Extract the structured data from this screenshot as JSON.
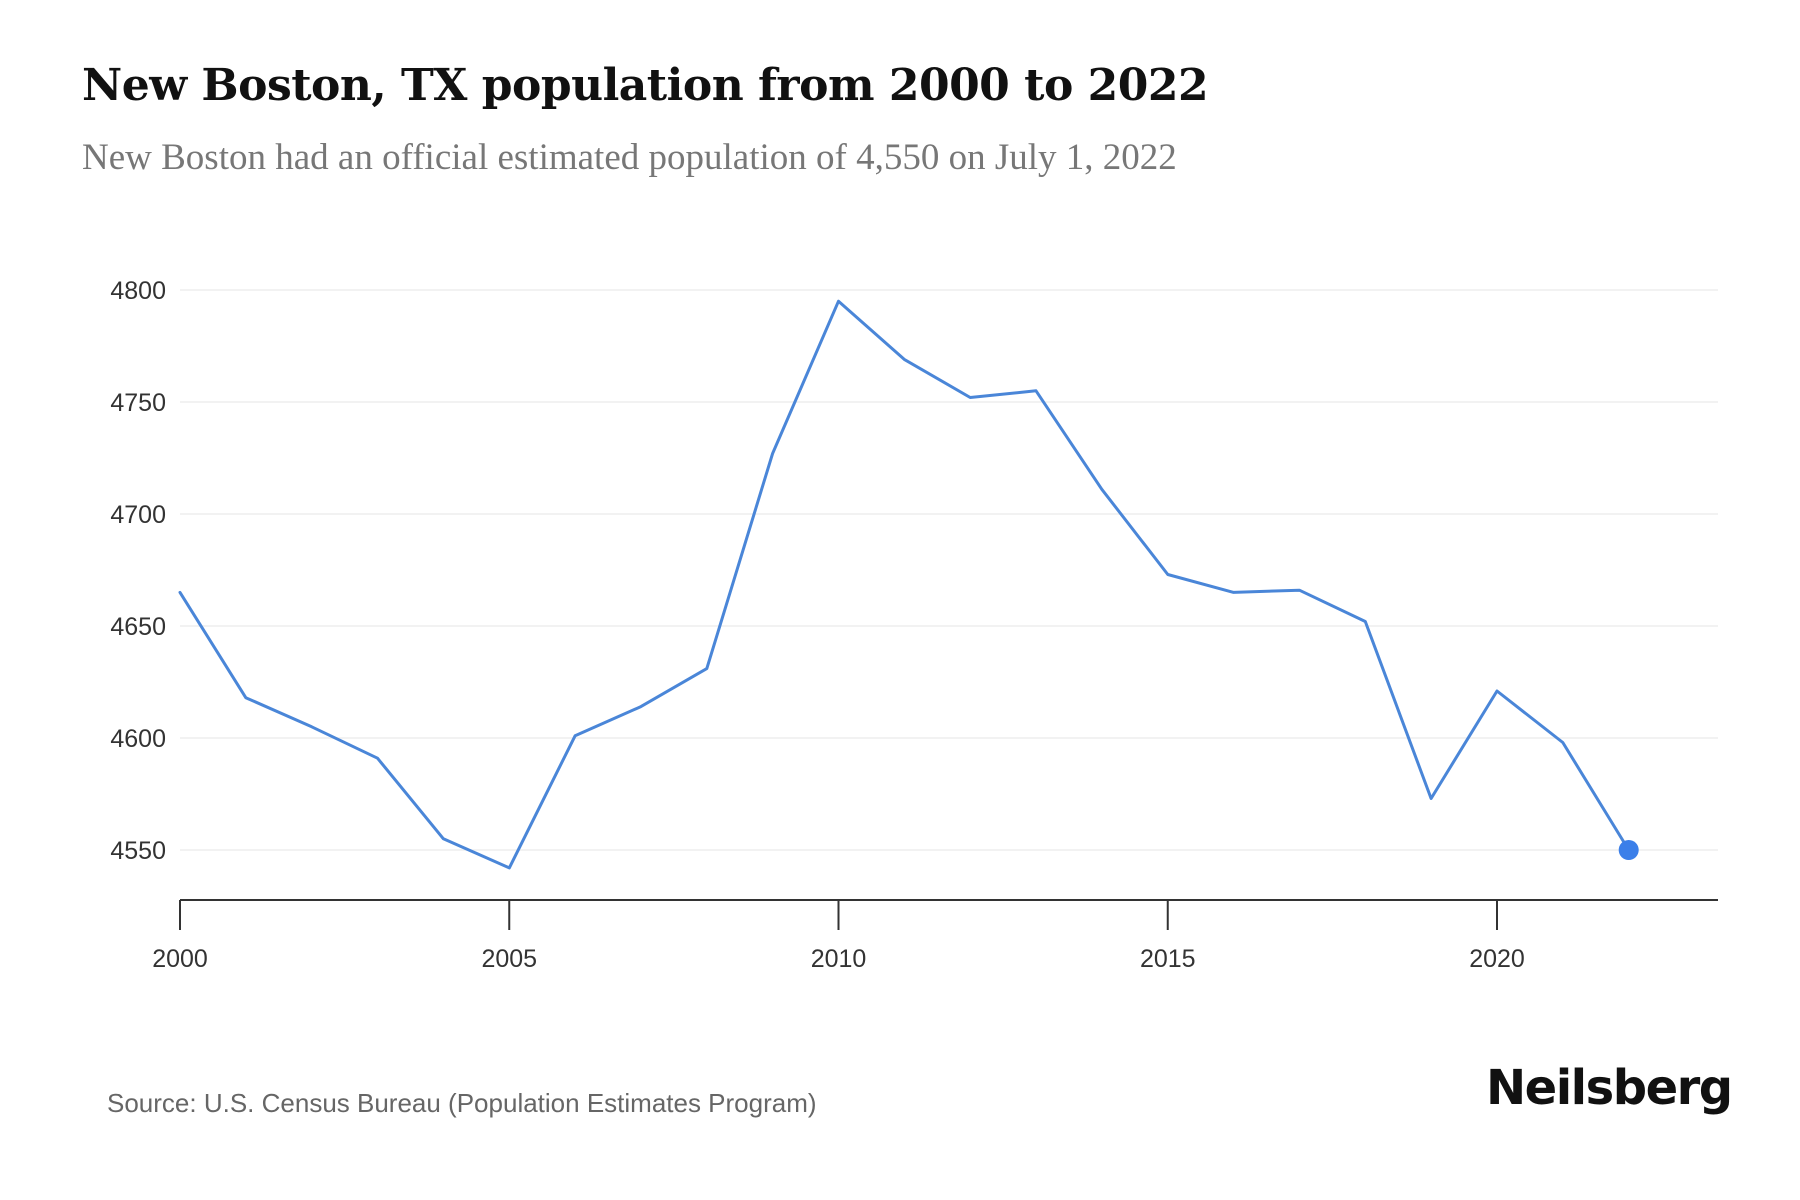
{
  "header": {
    "title": "New Boston, TX population from 2000 to 2022",
    "subtitle": "New Boston had an official estimated population of 4,550 on July 1, 2022"
  },
  "footer": {
    "source": "Source: U.S. Census Bureau (Population Estimates Program)",
    "logo": "Neilsberg"
  },
  "colors": {
    "line": "#4a86d8",
    "last_point": "#3b7fe9",
    "grid": "#eeeeee",
    "axis": "#333333"
  },
  "chart_data": {
    "type": "line",
    "title": "New Boston, TX population from 2000 to 2022",
    "subtitle": "New Boston had an official estimated population of 4,550 on July 1, 2022",
    "xlabel": "",
    "ylabel": "",
    "x": [
      2000,
      2001,
      2002,
      2003,
      2004,
      2005,
      2006,
      2007,
      2008,
      2009,
      2010,
      2011,
      2012,
      2013,
      2014,
      2015,
      2016,
      2017,
      2018,
      2019,
      2020,
      2021,
      2022
    ],
    "series": [
      {
        "name": "Population",
        "values": [
          4665,
          4618,
          4605,
          4591,
          4555,
          4542,
          4601,
          4614,
          4631,
          4727,
          4795,
          4769,
          4752,
          4755,
          4711,
          4673,
          4665,
          4666,
          4652,
          4573,
          4621,
          4598,
          4550
        ]
      }
    ],
    "highlight_last_point": true,
    "xlim": [
      2000,
      2023.4
    ],
    "ylim": [
      4527.5,
      4800
    ],
    "yticks": [
      4550,
      4600,
      4650,
      4700,
      4750,
      4800
    ],
    "ytick_labels": [
      "4550",
      "4600",
      "4650",
      "4700",
      "4750",
      "4800"
    ],
    "xticks": [
      2000,
      2005,
      2010,
      2015,
      2020
    ],
    "xtick_labels": [
      "2000",
      "2005",
      "2010",
      "2015",
      "2020"
    ],
    "grid": "horizontal",
    "legend": "none",
    "source": "Source: U.S. Census Bureau (Population Estimates Program)"
  }
}
